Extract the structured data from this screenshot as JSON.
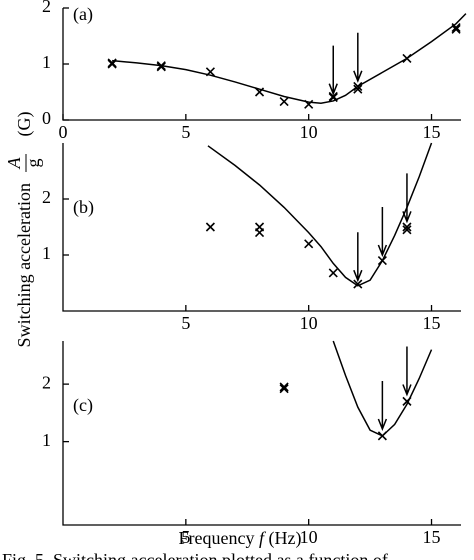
{
  "chart_data": [
    {
      "type": "line",
      "panel_label": "(a)",
      "xlim": [
        0,
        16.2
      ],
      "ylim": [
        0,
        2
      ],
      "xticks": [
        0,
        5,
        10,
        15
      ],
      "yticks": [
        0,
        1,
        2
      ],
      "points": {
        "x": [
          2,
          2,
          4,
          4,
          6,
          8,
          9,
          10,
          11,
          11,
          12,
          12,
          14,
          16,
          16
        ],
        "y": [
          1.02,
          1.0,
          0.97,
          0.95,
          0.86,
          0.5,
          0.33,
          0.28,
          0.42,
          0.4,
          0.6,
          0.55,
          1.1,
          1.65,
          1.62
        ]
      },
      "curve": {
        "x": [
          2,
          3,
          4,
          5,
          6,
          7,
          8,
          9,
          10,
          10.5,
          11,
          11.5,
          12,
          13,
          14,
          15,
          16,
          16.4
        ],
        "y": [
          1.06,
          1.02,
          0.97,
          0.9,
          0.8,
          0.68,
          0.55,
          0.42,
          0.32,
          0.3,
          0.34,
          0.44,
          0.6,
          0.85,
          1.1,
          1.4,
          1.72,
          1.9
        ]
      },
      "arrows": {
        "x": [
          11,
          12
        ],
        "y": [
          0.47,
          0.7
        ]
      }
    },
    {
      "type": "line",
      "panel_label": "(b)",
      "xlim": [
        0,
        16.2
      ],
      "ylim": [
        0,
        3
      ],
      "xticks": [
        5,
        10,
        15
      ],
      "yticks": [
        1,
        2
      ],
      "points": {
        "x": [
          6,
          8,
          8,
          10,
          11,
          12,
          13,
          14,
          14
        ],
        "y": [
          1.5,
          1.5,
          1.4,
          1.2,
          0.68,
          0.48,
          0.9,
          1.5,
          1.45
        ]
      },
      "curve": {
        "x": [
          5.9,
          7,
          8,
          9,
          10,
          10.5,
          11,
          11.5,
          12,
          12.5,
          13,
          13.5,
          14,
          14.5,
          15
        ],
        "y": [
          2.95,
          2.6,
          2.25,
          1.85,
          1.4,
          1.15,
          0.85,
          0.6,
          0.45,
          0.55,
          0.9,
          1.35,
          1.85,
          2.4,
          3.0
        ]
      },
      "arrows": {
        "x": [
          12,
          13,
          14
        ],
        "y": [
          0.55,
          1.0,
          1.6
        ]
      }
    },
    {
      "type": "line",
      "panel_label": "(c)",
      "xlim": [
        0,
        16.2
      ],
      "ylim": [
        -0.45,
        2.75
      ],
      "xticks": [
        5,
        10,
        15
      ],
      "yticks": [
        1,
        2
      ],
      "points": {
        "x": [
          9,
          9,
          13,
          14
        ],
        "y": [
          1.95,
          1.92,
          1.1,
          1.7
        ]
      },
      "curve": {
        "x": [
          11,
          11.5,
          12,
          12.5,
          13,
          13.5,
          14,
          14.5,
          15
        ],
        "y": [
          2.75,
          2.15,
          1.6,
          1.2,
          1.1,
          1.3,
          1.65,
          2.1,
          2.6
        ]
      },
      "arrows": {
        "x": [
          13,
          14
        ],
        "y": [
          1.22,
          1.82
        ]
      }
    }
  ],
  "figure": {
    "y_label": "Switching acceleration",
    "y_frac_num": "A",
    "y_frac_den": "g",
    "y_unit": "(G)",
    "x_label": "Frequency",
    "x_var": "f",
    "x_unit": "(Hz)",
    "caption": "Fig. 5. Switching acceleration plotted as a function of"
  }
}
